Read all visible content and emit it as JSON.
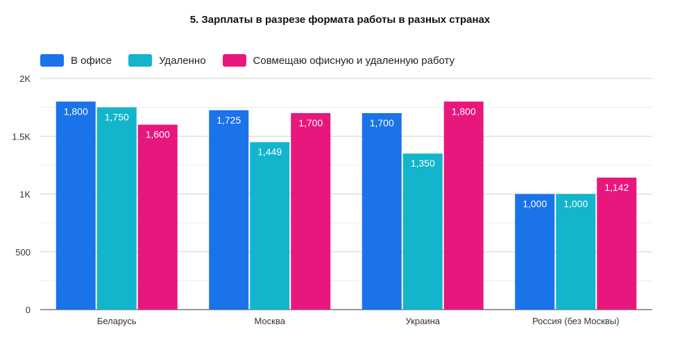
{
  "chart_data": {
    "type": "bar",
    "title": "5.  Зарплаты в разрезе формата работы в разных странах",
    "categories": [
      "Беларусь",
      "Москва",
      "Украина",
      "Россия (без Москвы)"
    ],
    "series": [
      {
        "name": "В офисе",
        "color": "#1a73e8",
        "values": [
          1800,
          1725,
          1700,
          1000
        ],
        "labels": [
          "1,800",
          "1,725",
          "1,700",
          "1,000"
        ]
      },
      {
        "name": "Удаленно",
        "color": "#12b5cb",
        "values": [
          1750,
          1449,
          1350,
          1000
        ],
        "labels": [
          "1,750",
          "1,449",
          "1,350",
          "1,000"
        ]
      },
      {
        "name": "Совмещаю офисную и удаленную работу",
        "color": "#e8177d",
        "values": [
          1600,
          1700,
          1800,
          1142
        ],
        "labels": [
          "1,600",
          "1,700",
          "1,800",
          "1,142"
        ]
      }
    ],
    "ylim": [
      0,
      2000
    ],
    "yticks": [
      0,
      500,
      1000,
      1500,
      2000
    ],
    "ytick_labels": [
      "0",
      "500",
      "1K",
      "1.5K",
      "2K"
    ],
    "xlabel": "",
    "ylabel": "",
    "grid": true,
    "legend_position": "top-left"
  }
}
